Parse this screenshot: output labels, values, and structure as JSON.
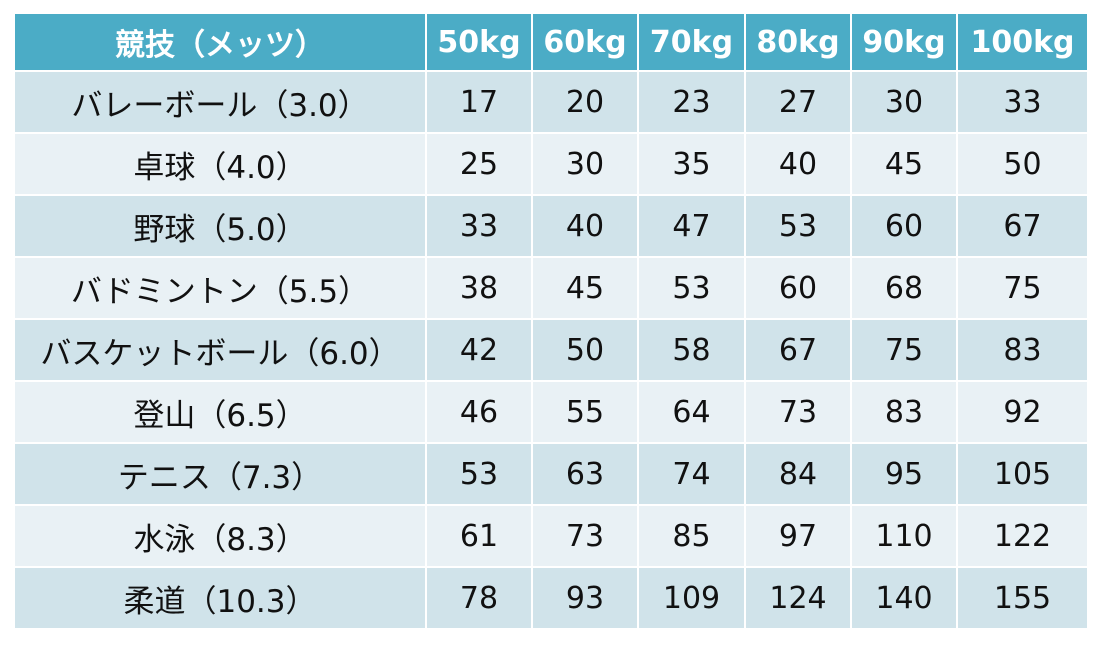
{
  "table": {
    "header": {
      "sport": "競技（メッツ）",
      "weights": [
        "50kg",
        "60kg",
        "70kg",
        "80kg",
        "90kg",
        "100kg"
      ]
    },
    "rows": [
      {
        "sport": "バレーボール（3.0）",
        "values": [
          "17",
          "20",
          "23",
          "27",
          "30",
          "33"
        ]
      },
      {
        "sport": "卓球（4.0）",
        "values": [
          "25",
          "30",
          "35",
          "40",
          "45",
          "50"
        ]
      },
      {
        "sport": "野球（5.0）",
        "values": [
          "33",
          "40",
          "47",
          "53",
          "60",
          "67"
        ]
      },
      {
        "sport": "バドミントン（5.5）",
        "values": [
          "38",
          "45",
          "53",
          "60",
          "68",
          "75"
        ]
      },
      {
        "sport": "バスケットボール（6.0）",
        "values": [
          "42",
          "50",
          "58",
          "67",
          "75",
          "83"
        ]
      },
      {
        "sport": "登山（6.5）",
        "values": [
          "46",
          "55",
          "64",
          "73",
          "83",
          "92"
        ]
      },
      {
        "sport": "テニス（7.3）",
        "values": [
          "53",
          "63",
          "74",
          "84",
          "95",
          "105"
        ]
      },
      {
        "sport": "水泳（8.3）",
        "values": [
          "61",
          "73",
          "85",
          "97",
          "110",
          "122"
        ]
      },
      {
        "sport": "柔道（10.3）",
        "values": [
          "78",
          "93",
          "109",
          "124",
          "140",
          "155"
        ]
      }
    ],
    "colors": {
      "header_bg": "#4bacc6",
      "header_text": "#ffffff",
      "row_odd_bg": "#d0e3ea",
      "row_even_bg": "#e9f1f5",
      "border": "#ffffff"
    }
  }
}
